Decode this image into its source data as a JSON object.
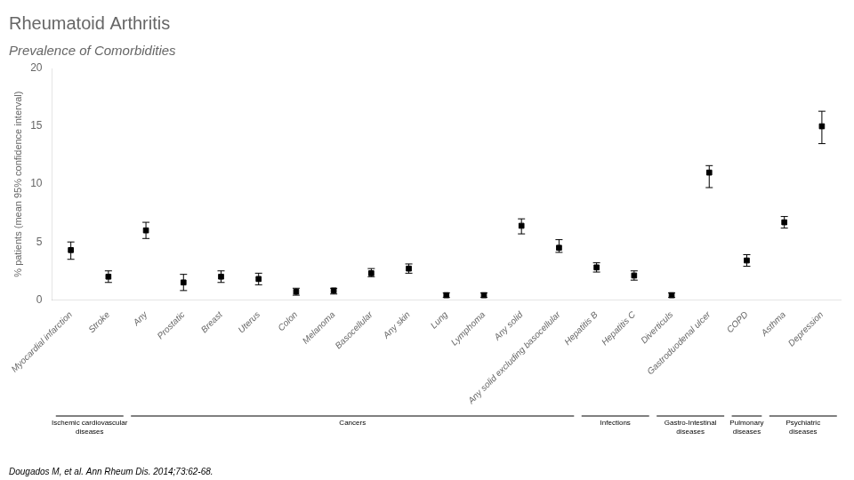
{
  "chart_data": {
    "type": "scatter",
    "title": "Rheumatoid Arthritis",
    "subtitle": "Prevalence of Comorbidities",
    "ylabel": "% patients (mean 95% confidence interval)",
    "annotations": [
      "Dougados M, et al. Ann Rheum Dis. 2014;73:62-68."
    ],
    "categories": [
      "Myocardial infarction",
      "Stroke",
      "Any",
      "Prostatic",
      "Breast",
      "Uterus",
      "Colon",
      "Melanoma",
      "Basocellular",
      "Any skin",
      "Lung",
      "Lymphoma",
      "Any solid",
      "Any solid excluding basocellular",
      "Hepatitis B",
      "Hepatitis C",
      "Diverticuls",
      "Gastroduodenal ulcer",
      "COPD",
      "Asthma",
      "Depression"
    ],
    "values": [
      4.3,
      2.0,
      6.0,
      1.5,
      2.0,
      1.8,
      0.7,
      0.8,
      2.3,
      2.7,
      0.4,
      0.4,
      6.4,
      4.5,
      2.8,
      2.1,
      0.4,
      11.0,
      3.4,
      6.7,
      15.0
    ],
    "ci_low": [
      3.5,
      1.5,
      5.3,
      0.8,
      1.5,
      1.3,
      0.4,
      0.5,
      2.0,
      2.3,
      0.2,
      0.2,
      5.7,
      4.1,
      2.4,
      1.7,
      0.2,
      9.7,
      2.9,
      6.2,
      13.5
    ],
    "ci_high": [
      5.0,
      2.5,
      6.7,
      2.2,
      2.5,
      2.3,
      1.0,
      1.0,
      2.7,
      3.1,
      0.6,
      0.6,
      7.0,
      5.2,
      3.2,
      2.5,
      0.6,
      11.6,
      3.9,
      7.2,
      16.3
    ],
    "groups": [
      {
        "label": "Ischemic cardiovascular\ndiseases",
        "categories": [
          "Myocardial infarction",
          "Stroke"
        ]
      },
      {
        "label": "Cancers",
        "categories": [
          "Any",
          "Prostatic",
          "Breast",
          "Uterus",
          "Colon",
          "Melanoma",
          "Basocellular",
          "Any skin",
          "Lung",
          "Lymphoma",
          "Any solid",
          "Any solid excluding basocellular"
        ]
      },
      {
        "label": "Infections",
        "categories": [
          "Hepatitis B",
          "Hepatitis C"
        ]
      },
      {
        "label": "Gastro-Intestinal\ndiseases",
        "categories": [
          "Diverticuls",
          "Gastroduodenal ulcer"
        ]
      },
      {
        "label": "Pulmonary\ndiseases",
        "categories": [
          "COPD"
        ]
      },
      {
        "label": "Psychiatric\ndiseases",
        "categories": [
          "Asthma",
          "Depression"
        ]
      }
    ],
    "color": "black",
    "marker": "square",
    "ylim": [
      0,
      20
    ],
    "yticks": [
      0,
      5,
      10,
      15,
      20
    ],
    "grid": false
  }
}
